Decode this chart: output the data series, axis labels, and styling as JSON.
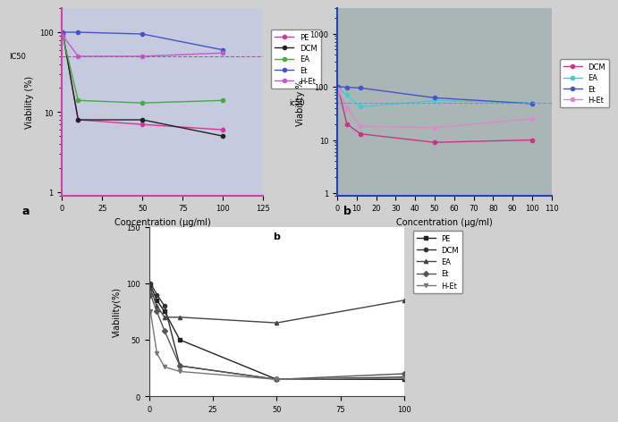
{
  "panel_a": {
    "xlabel": "Concentration (μg/ml)",
    "ylabel": "Viability (%)",
    "xlim": [
      0,
      125
    ],
    "xticks": [
      0,
      25,
      50,
      75,
      100,
      125
    ],
    "yticks_log": [
      1,
      10,
      100
    ],
    "ylim_log": [
      0.9,
      200
    ],
    "ic50_y": 50,
    "ic50_label": "IC50",
    "bg_color": "#c5cade",
    "spine_color_left": "#cc44aa",
    "spine_color_bottom": "#cc44aa",
    "series": {
      "PE": {
        "x": [
          0.5,
          10,
          50,
          100
        ],
        "y": [
          98,
          8,
          7,
          6
        ],
        "color": "#dd3399",
        "marker": "o"
      },
      "DCM": {
        "x": [
          0.5,
          10,
          50,
          100
        ],
        "y": [
          95,
          8,
          8,
          5
        ],
        "color": "#222222",
        "marker": "o"
      },
      "EA": {
        "x": [
          0.5,
          10,
          50,
          100
        ],
        "y": [
          88,
          14,
          13,
          14
        ],
        "color": "#44aa44",
        "marker": "o"
      },
      "Et": {
        "x": [
          0.5,
          10,
          50,
          100
        ],
        "y": [
          100,
          100,
          95,
          60
        ],
        "color": "#4455cc",
        "marker": "o"
      },
      "H-Et": {
        "x": [
          0.5,
          10,
          50,
          100
        ],
        "y": [
          90,
          50,
          50,
          55
        ],
        "color": "#cc55cc",
        "marker": "o"
      }
    },
    "legend_series": [
      "PE",
      "DCM",
      "EA",
      "Et",
      "H-Et"
    ]
  },
  "panel_b": {
    "xlabel": "Concentration (μg/ml)",
    "ylabel": "Viability %",
    "xlim": [
      0,
      110
    ],
    "xticks": [
      0,
      10,
      20,
      30,
      40,
      50,
      60,
      70,
      80,
      90,
      100,
      110
    ],
    "yticks_log": [
      1,
      10,
      100,
      1000
    ],
    "ylim_log": [
      0.9,
      3000
    ],
    "ic50_y": 50,
    "ic50_label": "ic50",
    "bg_color": "#aab5b5",
    "spine_color_left": "#2244bb",
    "spine_color_bottom": "#2244bb",
    "series": {
      "DCM": {
        "x": [
          0.5,
          5,
          12,
          50,
          100
        ],
        "y": [
          98,
          20,
          13,
          9,
          10
        ],
        "color": "#cc3388",
        "marker": "o"
      },
      "EA": {
        "x": [
          0.5,
          5,
          12,
          50,
          100
        ],
        "y": [
          95,
          70,
          42,
          55,
          50
        ],
        "color": "#44cccc",
        "marker": "o"
      },
      "Et": {
        "x": [
          0.5,
          5,
          12,
          50,
          100
        ],
        "y": [
          100,
          98,
          95,
          62,
          48
        ],
        "color": "#4455cc",
        "marker": "o"
      },
      "H-Et": {
        "x": [
          0.5,
          5,
          12,
          50,
          100
        ],
        "y": [
          88,
          40,
          18,
          17,
          25
        ],
        "color": "#dd88cc",
        "marker": "o"
      }
    },
    "legend_series": [
      "DCM",
      "EA",
      "Et",
      "H-Et"
    ]
  },
  "panel_c": {
    "ylabel": "Viability(%)",
    "xlim": [
      0,
      100
    ],
    "xticks": [
      0,
      25,
      50,
      75,
      100
    ],
    "ylim": [
      0,
      150
    ],
    "yticks": [
      0,
      50,
      100,
      150
    ],
    "bg_color": "#ffffff",
    "label_text": "b",
    "series": {
      "PE": {
        "x": [
          0.5,
          3,
          6,
          12,
          50,
          100
        ],
        "y": [
          98,
          85,
          75,
          50,
          15,
          15
        ],
        "color": "#222222",
        "marker": "s"
      },
      "DCM": {
        "x": [
          0.5,
          3,
          6,
          12,
          50,
          100
        ],
        "y": [
          100,
          90,
          80,
          27,
          15,
          17
        ],
        "color": "#333333",
        "marker": "o"
      },
      "EA": {
        "x": [
          0.5,
          3,
          6,
          12,
          50,
          100
        ],
        "y": [
          95,
          80,
          70,
          70,
          65,
          85
        ],
        "color": "#444444",
        "marker": "^"
      },
      "Et": {
        "x": [
          0.5,
          3,
          6,
          12,
          50,
          100
        ],
        "y": [
          90,
          75,
          58,
          27,
          15,
          20
        ],
        "color": "#555555",
        "marker": "D"
      },
      "H-Et": {
        "x": [
          0.5,
          3,
          6,
          12,
          50,
          100
        ],
        "y": [
          75,
          38,
          26,
          22,
          15,
          16
        ],
        "color": "#777777",
        "marker": "v"
      }
    },
    "legend_series": [
      "PE",
      "DCM",
      "EA",
      "Et",
      "H-Et"
    ]
  },
  "fig_bg": "#d0d0d0"
}
